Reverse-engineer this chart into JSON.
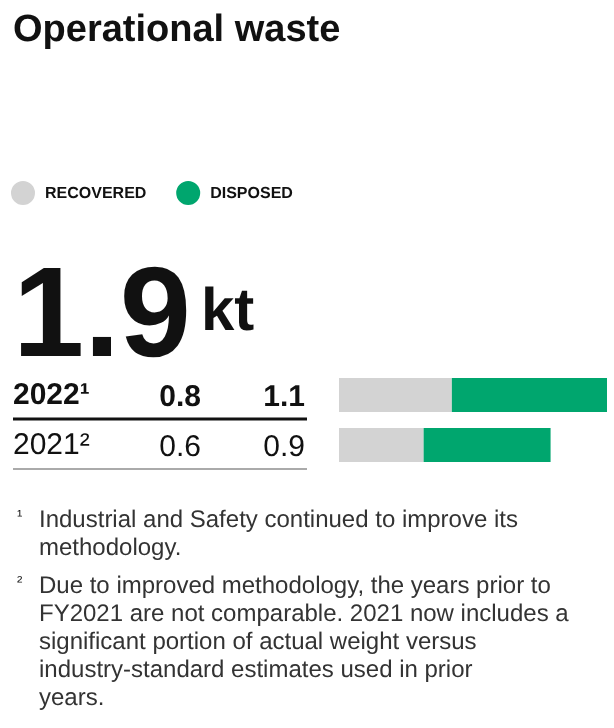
{
  "chart_data": {
    "type": "bar",
    "orientation": "horizontal",
    "stacked": true,
    "title": "Operational waste",
    "subtitle": "1.9kt",
    "categories": [
      "2022¹",
      "2021²"
    ],
    "series": [
      {
        "name": "RECOVERED",
        "color": "#d3d3d3",
        "values": [
          0.8,
          0.6
        ]
      },
      {
        "name": "DISPOSED",
        "color": "#00a66e",
        "values": [
          1.1,
          0.9
        ]
      }
    ],
    "xlim": [
      0,
      1.9
    ],
    "grid": false,
    "legend": "top left",
    "data_labels": true,
    "annotations": [
      "¹ Industrial and Safety continued to improve its methodology.",
      "² Due to improved methodology, the years prior to FY2021 are not comparable. 2021 now includes a significant portion of actual weight versus industry-standard estimates used in prior years."
    ]
  }
}
